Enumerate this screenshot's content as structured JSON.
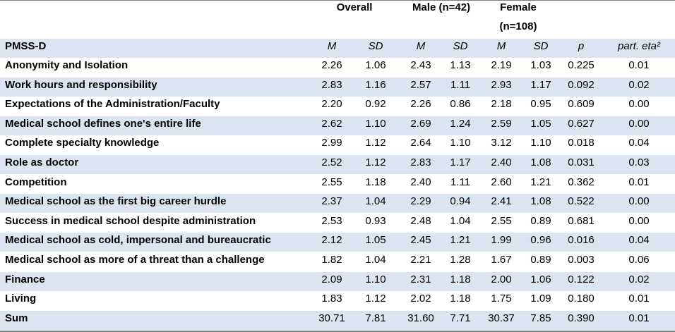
{
  "table": {
    "group_headers": {
      "overall": "Overall",
      "male": "Male (n=42)",
      "female_line1": "Female",
      "female_line2": "(n=108)"
    },
    "column_headers": {
      "label": "PMSS-D",
      "m1": "M",
      "sd1": "SD",
      "m2": "M",
      "sd2": "SD",
      "m3": "M",
      "sd3": "SD",
      "p": "p",
      "eta": "part. eta²"
    },
    "rows": [
      {
        "label": "Anonymity and Isolation",
        "values": [
          "2.26",
          "1.06",
          "2.43",
          "1.13",
          "2.19",
          "1.03",
          "0.225",
          "0.01"
        ]
      },
      {
        "label": "Work hours and responsibility",
        "values": [
          "2.83",
          "1.16",
          "2.57",
          "1.11",
          "2.93",
          "1.17",
          "0.092",
          "0.02"
        ]
      },
      {
        "label": "Expectations of the Administration/Faculty",
        "values": [
          "2.20",
          "0.92",
          "2.26",
          "0.86",
          "2.18",
          "0.95",
          "0.609",
          "0.00"
        ]
      },
      {
        "label": "Medical school defines one's entire life",
        "values": [
          "2.62",
          "1.10",
          "2.69",
          "1.24",
          "2.59",
          "1.05",
          "0.627",
          "0.00"
        ]
      },
      {
        "label": "Complete specialty knowledge",
        "values": [
          "2.99",
          "1.12",
          "2.64",
          "1.10",
          "3.12",
          "1.10",
          "0.018",
          "0.04"
        ]
      },
      {
        "label": "Role as doctor",
        "values": [
          "2.52",
          "1.12",
          "2.83",
          "1.17",
          "2.40",
          "1.08",
          "0.031",
          "0.03"
        ]
      },
      {
        "label": "Competition",
        "values": [
          "2.55",
          "1.18",
          "2.40",
          "1.11",
          "2.60",
          "1.21",
          "0.362",
          "0.01"
        ]
      },
      {
        "label": "Medical school as the first big career hurdle",
        "values": [
          "2.37",
          "1.04",
          "2.29",
          "0.94",
          "2.41",
          "1.08",
          "0.522",
          "0.00"
        ]
      },
      {
        "label": "Success in medical school despite administration",
        "values": [
          "2.53",
          "0.93",
          "2.48",
          "1.04",
          "2.55",
          "0.89",
          "0.681",
          "0.00"
        ]
      },
      {
        "label": "Medical school as cold, impersonal and bureaucratic",
        "values": [
          "2.12",
          "1.05",
          "2.45",
          "1.21",
          "1.99",
          "0.96",
          "0.016",
          "0.04"
        ]
      },
      {
        "label": "Medical school as more of a threat than a challenge",
        "values": [
          "1.82",
          "1.04",
          "2.21",
          "1.28",
          "1.67",
          "0.89",
          "0.003",
          "0.06"
        ]
      },
      {
        "label": "Finance",
        "values": [
          "2.09",
          "1.10",
          "2.31",
          "1.18",
          "2.00",
          "1.06",
          "0.122",
          "0.02"
        ]
      },
      {
        "label": "Living",
        "values": [
          "1.83",
          "1.12",
          "2.02",
          "1.18",
          "1.75",
          "1.09",
          "0.180",
          "0.01"
        ]
      },
      {
        "label": "Sum",
        "values": [
          "30.71",
          "7.81",
          "31.60",
          "7.71",
          "30.37",
          "7.85",
          "0.390",
          "0.01"
        ]
      }
    ]
  },
  "colors": {
    "row_shade": "#dbe5f1",
    "rule": "#7f7f7f"
  }
}
